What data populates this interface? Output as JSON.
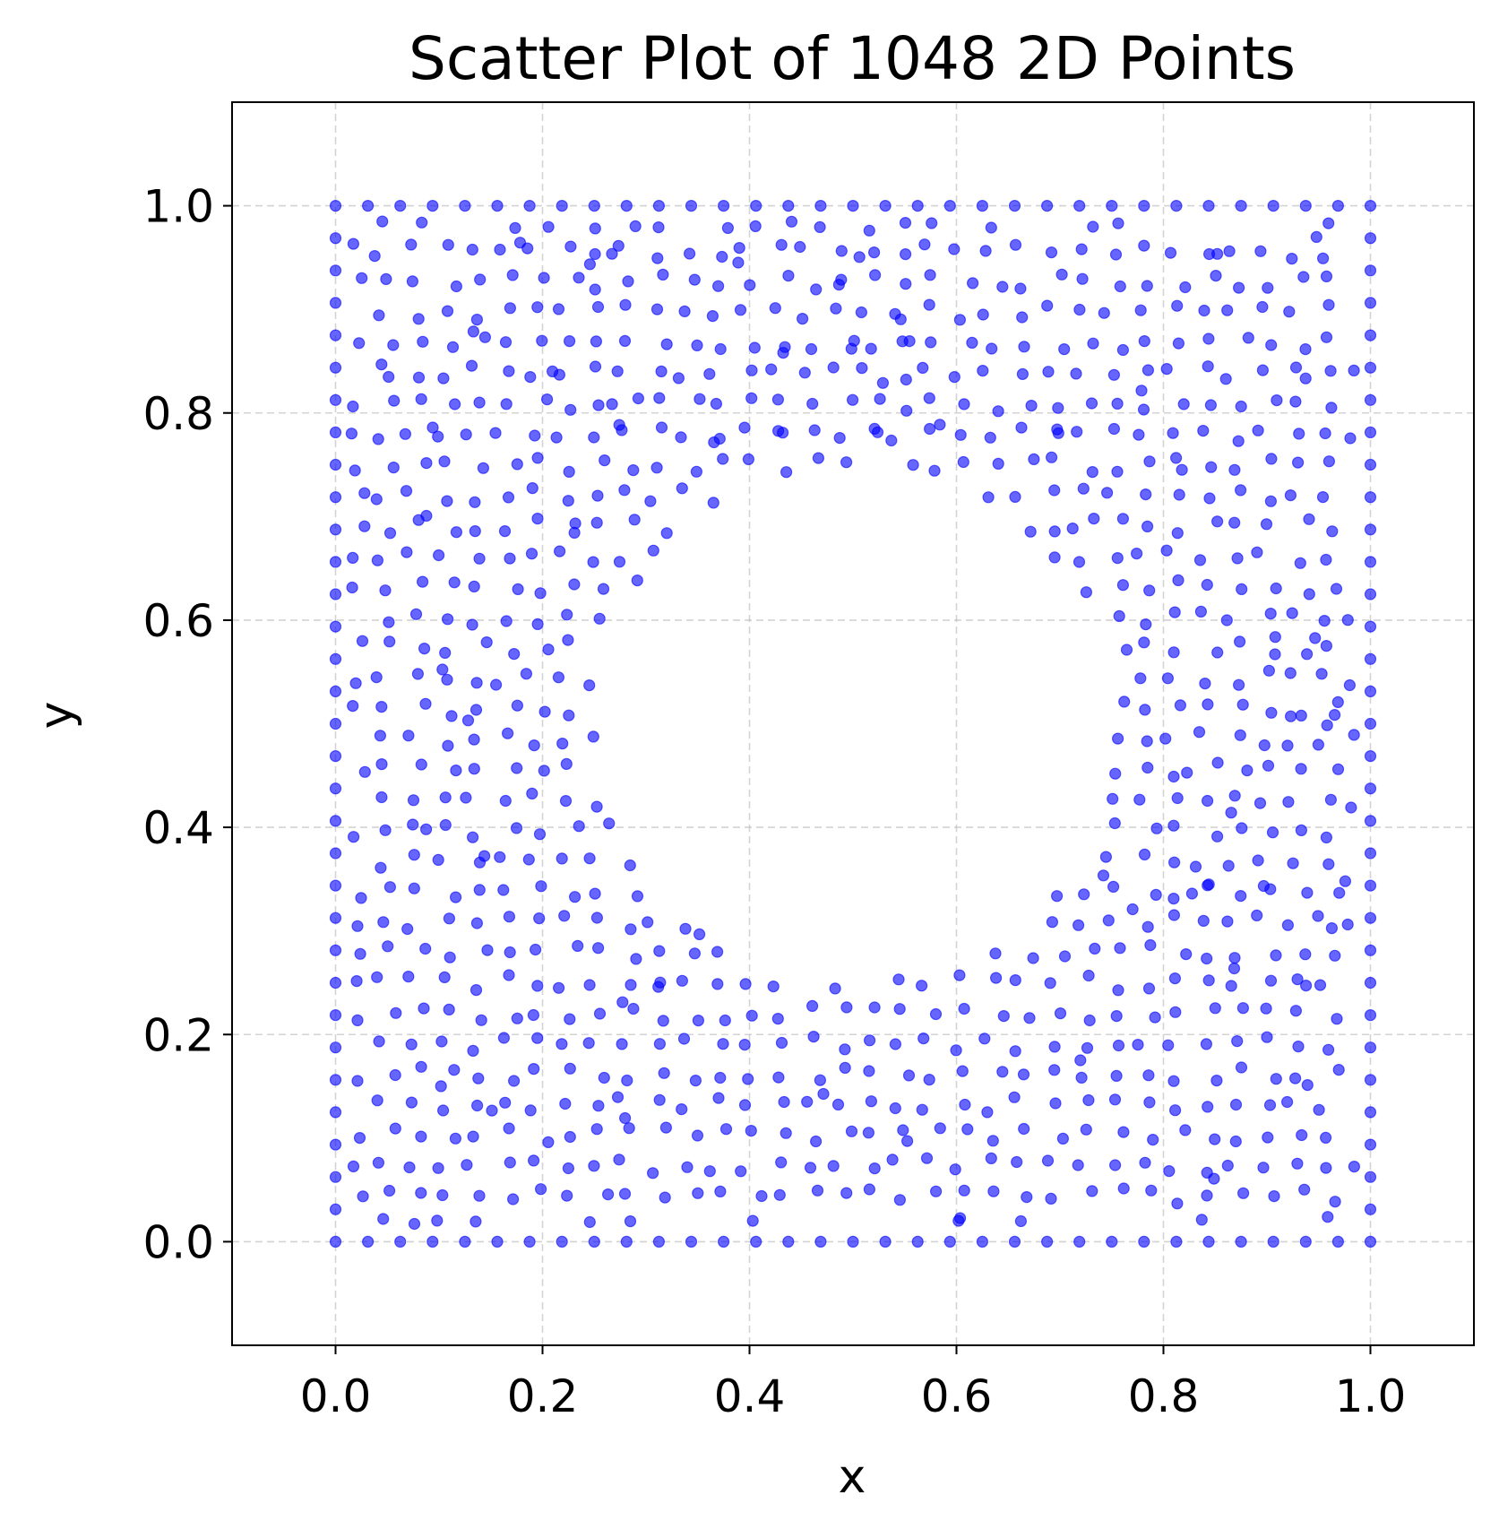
{
  "chart_data": {
    "type": "scatter",
    "title": "Scatter Plot of 1048 2D Points",
    "xlabel": "x",
    "ylabel": "y",
    "xlim": [
      -0.1,
      1.1
    ],
    "ylim": [
      -0.1,
      1.1
    ],
    "xticks": [
      "0.0",
      "0.2",
      "0.4",
      "0.6",
      "0.8",
      "1.0"
    ],
    "yticks": [
      "0.0",
      "0.2",
      "0.4",
      "0.6",
      "0.8",
      "1.0"
    ],
    "xtick_values": [
      0.0,
      0.2,
      0.4,
      0.6,
      0.8,
      1.0
    ],
    "ytick_values": [
      0.0,
      0.2,
      0.4,
      0.6,
      0.8,
      1.0
    ],
    "grid": true,
    "point_color": "#0000ff",
    "point_count": 1048,
    "distribution": {
      "domain_x": [
        0.0,
        1.0
      ],
      "domain_y": [
        0.0,
        1.0
      ],
      "hole_center": [
        0.5,
        0.5
      ],
      "hole_radius": 0.25
    }
  }
}
